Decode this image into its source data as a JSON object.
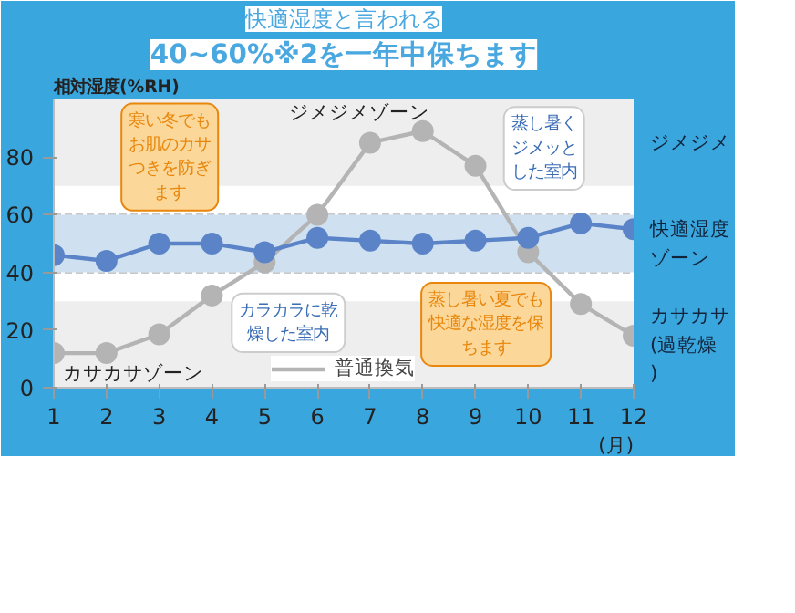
{
  "chart_data": {
    "type": "line",
    "title": "快適湿度と言われる",
    "subtitle": "40~60%※2を一年中保ちます",
    "ylabel": "相対湿度(%RH)",
    "xlabel": "(月)",
    "x": [
      1,
      2,
      3,
      4,
      5,
      6,
      7,
      8,
      9,
      10,
      11,
      12
    ],
    "xlim": [
      1,
      12
    ],
    "xticks": [
      1,
      2,
      3,
      4,
      5,
      6,
      7,
      8,
      9,
      10,
      11,
      12
    ],
    "ylim": [
      0,
      100
    ],
    "yticks": [
      0,
      20,
      40,
      60,
      80
    ],
    "series": [
      {
        "name": "普通換気",
        "color": "#b4b4b4",
        "values": [
          12,
          12,
          18.5,
          32,
          43.5,
          60,
          85,
          89,
          77,
          47,
          29,
          18
        ]
      },
      {
        "color": "#5b84c8",
        "values": [
          46,
          44,
          50,
          50,
          47,
          52,
          51,
          50,
          51,
          52,
          57,
          55
        ]
      }
    ],
    "bands": [
      {
        "axis": "y",
        "from": 70,
        "to": 100,
        "label": "ジメジメ",
        "color": "#eeeeee"
      },
      {
        "axis": "y",
        "from": 40,
        "to": 60,
        "label": "快適湿度ゾーン",
        "color": "#cfe0f1"
      },
      {
        "axis": "y",
        "from": 0,
        "to": 30,
        "label": "カサカサ(過乾燥)",
        "color": "#eeeeee"
      }
    ],
    "annotations": [
      "寒い冬でもお肌のカサつきを防ぎます",
      "蒸し暑い夏でも快適な湿度を保ちます",
      "カラカラに乾燥した室内",
      "蒸し暑くジメッとした室内",
      "カサカサゾーン",
      "ジメジメゾーン"
    ],
    "marker": "circle",
    "line_style": "solid",
    "grid": "y",
    "legend": "bottom"
  }
}
